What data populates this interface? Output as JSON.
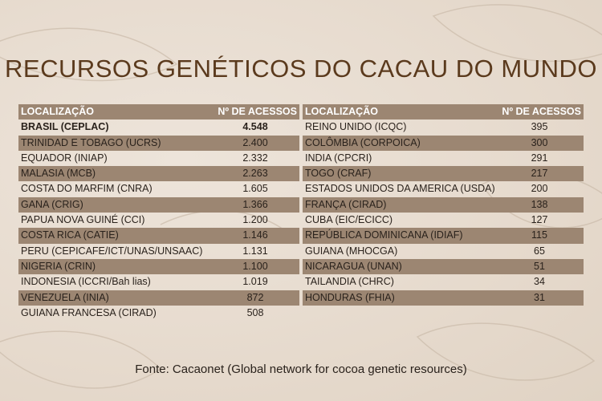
{
  "title": "RECURSOS GENÉTICOS DO CACAU DO MUNDO",
  "colors": {
    "title": "#5b3a1d",
    "header_bg": "#9c8672",
    "background": "#e9dfd3"
  },
  "tables": [
    {
      "headers": [
        "LOCALIZAÇÃO",
        "Nº DE ACESSOS"
      ],
      "rows": [
        [
          "BRASIL (CEPLAC)",
          "4.548"
        ],
        [
          "TRINIDAD E TOBAGO (UCRS)",
          "2.400"
        ],
        [
          "EQUADOR (INIAP)",
          "2.332"
        ],
        [
          "MALASIA (MCB)",
          "2.263"
        ],
        [
          "COSTA DO MARFIM (CNRA)",
          "1.605"
        ],
        [
          "GANA (CRIG)",
          "1.366"
        ],
        [
          "PAPUA NOVA GUINÉ (CCI)",
          "1.200"
        ],
        [
          "COSTA RICA (CATIE)",
          "1.146"
        ],
        [
          "PERU (CEPICAFE/ICT/UNAS/UNSAAC)",
          "1.131"
        ],
        [
          "NIGERIA (CRIN)",
          "1.100"
        ],
        [
          "INDONESIA (ICCRI/Bah lias)",
          "1.019"
        ],
        [
          "VENEZUELA (INIA)",
          "872"
        ],
        [
          "GUIANA FRANCESA (CIRAD)",
          "508"
        ]
      ]
    },
    {
      "headers": [
        "LOCALIZAÇÃO",
        "Nº DE ACESSOS"
      ],
      "rows": [
        [
          "REINO UNIDO (ICQC)",
          "395"
        ],
        [
          "COLÔMBIA (CORPOICA)",
          "300"
        ],
        [
          "INDIA (CPCRI)",
          "291"
        ],
        [
          "TOGO (CRAF)",
          "217"
        ],
        [
          "ESTADOS UNIDOS DA AMERICA (USDA)",
          "200"
        ],
        [
          "FRANÇA (CIRAD)",
          "138"
        ],
        [
          "CUBA (EIC/ECICC)",
          "127"
        ],
        [
          "REPÚBLICA DOMINICANA (IDIAF)",
          "115"
        ],
        [
          "GUIANA (MHOCGA)",
          "65"
        ],
        [
          "NICARAGUA (UNAN)",
          "51"
        ],
        [
          "TAILANDIA (CHRC)",
          "34"
        ],
        [
          "HONDURAS (FHIA)",
          "31"
        ]
      ]
    }
  ],
  "source": "Fonte: Cacaonet (Global network for cocoa genetic resources)"
}
